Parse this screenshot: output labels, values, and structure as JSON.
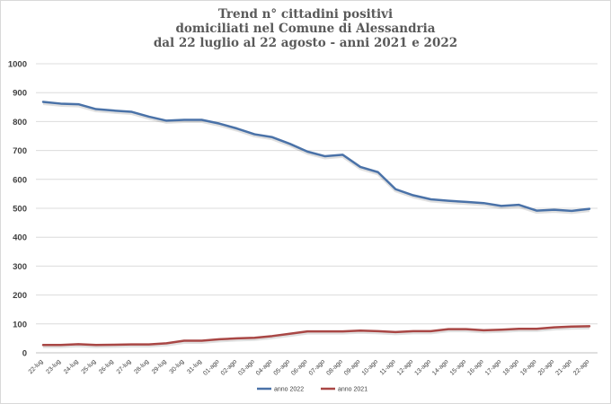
{
  "chart_data": {
    "type": "line",
    "title_lines": [
      "Trend n° cittadini positivi",
      "domiciliati nel Comune di Alessandria",
      "dal 22 luglio al 22 agosto - anni 2021 e 2022"
    ],
    "xlabel": "",
    "ylabel": "",
    "ylim": [
      0,
      1000
    ],
    "yticks": [
      0,
      100,
      200,
      300,
      400,
      500,
      600,
      700,
      800,
      900,
      1000
    ],
    "grid": true,
    "legend_position": "bottom",
    "categories": [
      "22-lug",
      "23-lug",
      "24-lug",
      "25-lug",
      "26-lug",
      "27-lug",
      "28-lug",
      "29-lug",
      "30-lug",
      "31-lug",
      "01-ago",
      "02-ago",
      "03-ago",
      "04-ago",
      "05-ago",
      "06-ago",
      "07-ago",
      "08-ago",
      "09-ago",
      "10-ago",
      "11-ago",
      "12-ago",
      "13-ago",
      "14-ago",
      "15-ago",
      "16-ago",
      "17-ago",
      "18-ago",
      "19-ago",
      "20-ago",
      "21-ago",
      "22-ago"
    ],
    "series": [
      {
        "name": "anno 2022",
        "color": "#4a72a8",
        "values": [
          868,
          862,
          860,
          843,
          838,
          834,
          817,
          803,
          806,
          806,
          793,
          776,
          756,
          746,
          723,
          696,
          680,
          685,
          643,
          625,
          566,
          545,
          531,
          526,
          522,
          518,
          508,
          512,
          492,
          495,
          491,
          498
        ]
      },
      {
        "name": "anno 2021",
        "color": "#a94745",
        "values": [
          27,
          27,
          30,
          27,
          28,
          29,
          29,
          33,
          42,
          42,
          47,
          50,
          52,
          58,
          66,
          74,
          74,
          74,
          77,
          75,
          72,
          75,
          75,
          82,
          82,
          78,
          80,
          83,
          83,
          88,
          91,
          92
        ]
      }
    ]
  }
}
